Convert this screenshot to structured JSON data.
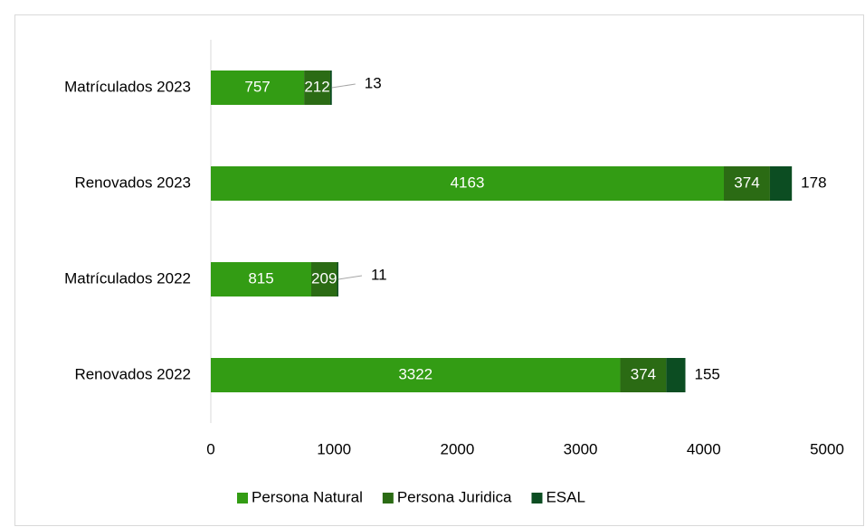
{
  "chart_data": {
    "type": "stacked_bar_horizontal",
    "categories": [
      "Matrículados 2023",
      "Renovados 2023",
      "Matrículados 2022",
      "Renovados 2022"
    ],
    "series": [
      {
        "name": "Persona Natural",
        "color": "#339c14",
        "values": [
          757,
          4163,
          815,
          3322
        ]
      },
      {
        "name": "Persona Juridica",
        "color": "#2b6b14",
        "values": [
          212,
          374,
          209,
          374
        ]
      },
      {
        "name": "ESAL",
        "color": "#0c4d22",
        "values": [
          13,
          178,
          11,
          155
        ]
      }
    ],
    "xlim": [
      0,
      5000
    ],
    "xticks": [
      0,
      1000,
      2000,
      3000,
      4000,
      5000
    ],
    "legend": "bottom",
    "grid": false
  }
}
